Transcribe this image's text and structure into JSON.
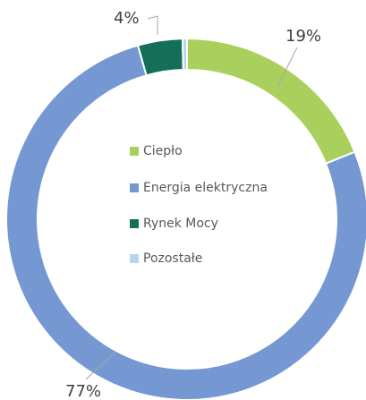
{
  "chart_data": {
    "type": "pie",
    "variant": "doughnut",
    "title": "",
    "categories": [
      "Ciepło",
      "Energia elektryczna",
      "Rynek Mocy",
      "Pozostałe"
    ],
    "values": [
      19,
      77,
      4,
      0.4
    ],
    "labels": [
      "19%",
      "77%",
      "4%"
    ],
    "colors": [
      "#A9D05D",
      "#7598D2",
      "#156E58",
      "#B7D6EC"
    ],
    "legend_placement": "center"
  }
}
